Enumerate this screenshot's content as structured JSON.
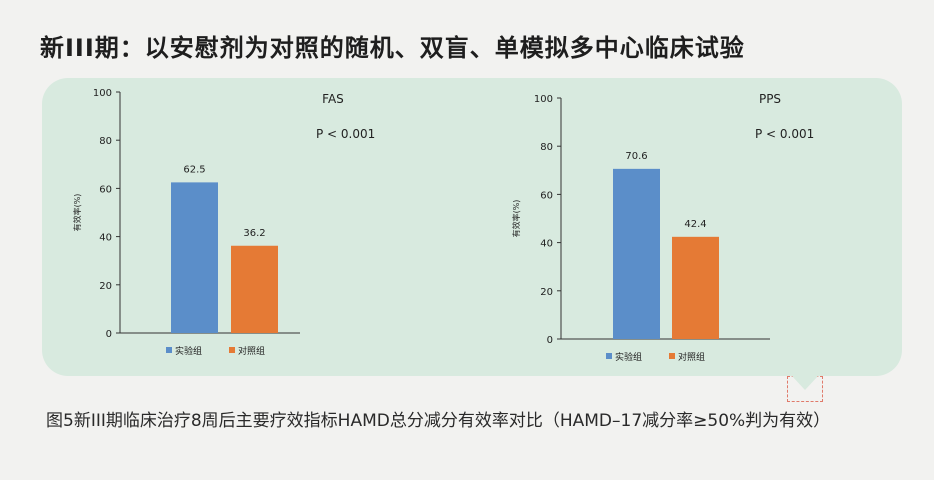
{
  "title": "新III期：以安慰剂为对照的随机、双盲、单模拟多中心临床试验",
  "caption": "图5新III期临床治疗8周后主要疗效指标HAMD总分减分有效率对比（HAMD–17减分率≥50%判为有效）",
  "colors": {
    "experimental": "#5b8ec9",
    "control": "#e57a35",
    "panel": "#d8eadf"
  },
  "chart_data": [
    {
      "type": "bar",
      "title": "FAS",
      "annotation": "P < 0.001",
      "ylabel": "有效率(%)",
      "ylim": [
        0,
        100
      ],
      "yticks": [
        0,
        20,
        40,
        60,
        80,
        100
      ],
      "categories": [
        "实验组",
        "对照组"
      ],
      "values": [
        62.5,
        36.2
      ],
      "value_labels": [
        "62.5",
        "36.2"
      ],
      "legend": [
        "实验组",
        "对照组"
      ]
    },
    {
      "type": "bar",
      "title": "PPS",
      "annotation": "P < 0.001",
      "ylabel": "有效率(%)",
      "ylim": [
        0,
        100
      ],
      "yticks": [
        0,
        20,
        40,
        60,
        80,
        100
      ],
      "categories": [
        "实验组",
        "对照组"
      ],
      "values": [
        70.6,
        42.4
      ],
      "value_labels": [
        "70.6",
        "42.4"
      ],
      "legend": [
        "实验组",
        "对照组"
      ]
    }
  ]
}
